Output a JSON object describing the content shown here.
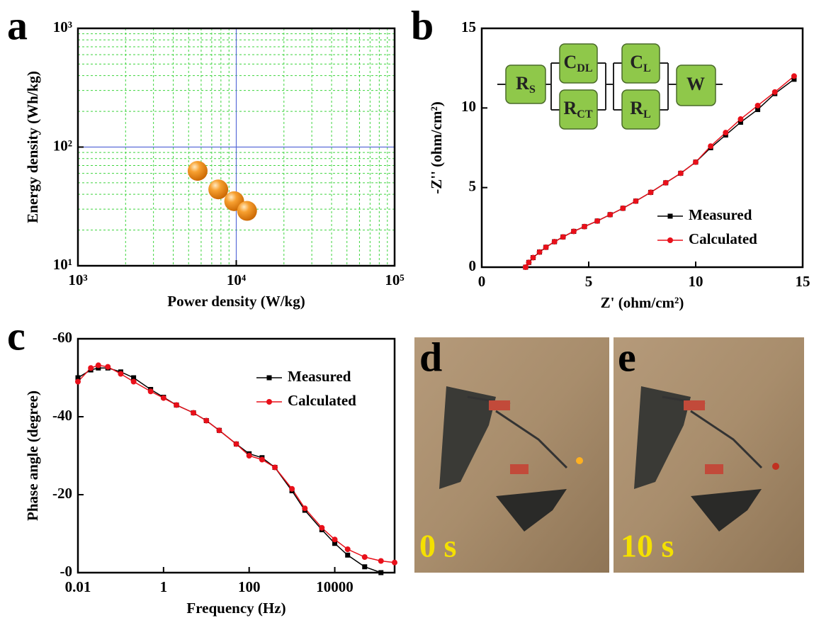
{
  "chart_data": [
    {
      "type": "scatter",
      "panel": "a",
      "xlabel": "Power density (W/kg)",
      "ylabel": "Energy density (Wh/kg)",
      "xlog": true,
      "ylog": true,
      "xlim": [
        1000,
        100000
      ],
      "ylim": [
        10,
        1000
      ],
      "xticks": [
        {
          "value": 1000,
          "label": "10³"
        },
        {
          "value": 10000,
          "label": "10⁴"
        },
        {
          "value": 100000,
          "label": "10⁵"
        }
      ],
      "yticks": [
        {
          "value": 10,
          "label": "10¹"
        },
        {
          "value": 100,
          "label": "10²"
        },
        {
          "value": 1000,
          "label": "10³"
        }
      ],
      "grid": true,
      "minor_grid": true,
      "x": [
        5700,
        7700,
        9700,
        11700
      ],
      "series": [
        {
          "color": "#f08a10",
          "values": [
            63,
            44,
            35,
            29
          ]
        }
      ]
    },
    {
      "type": "line",
      "panel": "b",
      "xlabel": "Z' (ohm/cm²)",
      "ylabel": "-Z'' (ohm/cm²)",
      "xlog": false,
      "ylog": false,
      "xlim": [
        0,
        15
      ],
      "ylim": [
        0,
        15
      ],
      "xticks": [
        0,
        5,
        10,
        15
      ],
      "yticks": [
        0,
        5,
        10,
        15
      ],
      "grid": false,
      "legend": "lower right",
      "x": [
        2.05,
        2.2,
        2.4,
        2.7,
        3.0,
        3.4,
        3.8,
        4.3,
        4.8,
        5.4,
        6.0,
        6.6,
        7.2,
        7.9,
        8.6,
        9.3,
        10.0,
        10.7,
        11.4,
        12.1,
        12.9,
        13.7,
        14.6
      ],
      "series": [
        {
          "name": "Measured",
          "color": "#000000",
          "marker": "square",
          "values": [
            0,
            0.3,
            0.6,
            0.95,
            1.25,
            1.6,
            1.9,
            2.25,
            2.55,
            2.9,
            3.3,
            3.7,
            4.15,
            4.7,
            5.3,
            5.9,
            6.6,
            7.5,
            8.3,
            9.1,
            9.9,
            10.9,
            11.8
          ]
        },
        {
          "name": "Calculated",
          "color": "#e8101a",
          "marker": "circle",
          "values": [
            0,
            0.3,
            0.6,
            0.95,
            1.25,
            1.6,
            1.9,
            2.25,
            2.55,
            2.9,
            3.3,
            3.7,
            4.15,
            4.7,
            5.3,
            5.9,
            6.6,
            7.6,
            8.45,
            9.3,
            10.15,
            11.0,
            12.0
          ]
        }
      ],
      "inset_circuit": [
        {
          "symbol": "R",
          "subscript": "S"
        },
        {
          "symbol": "C",
          "subscript": "DL"
        },
        {
          "symbol": "R",
          "subscript": "CT"
        },
        {
          "symbol": "C",
          "subscript": "L"
        },
        {
          "symbol": "R",
          "subscript": "L"
        },
        {
          "symbol": "W"
        }
      ]
    },
    {
      "type": "line",
      "panel": "c",
      "xlabel": "Frequency (Hz)",
      "ylabel": "Phase angle (degree)",
      "xlog": true,
      "ylog": false,
      "xlim": [
        0.01,
        250000
      ],
      "ylim": [
        0,
        -60
      ],
      "xticks": [
        0.01,
        1,
        100,
        10000
      ],
      "yticks": [
        {
          "value": -60,
          "label": "-60"
        },
        {
          "value": -40,
          "label": "-40"
        },
        {
          "value": -20,
          "label": "-20"
        },
        {
          "value": 0,
          "label": "-0"
        }
      ],
      "grid": false,
      "legend": "upper right",
      "x": [
        0.01,
        0.02,
        0.03,
        0.05,
        0.1,
        0.2,
        0.5,
        1,
        2,
        5,
        10,
        20,
        50,
        100,
        200,
        400,
        1000,
        2000,
        5000,
        10000,
        20000,
        50000,
        120000,
        250000
      ],
      "series": [
        {
          "name": "Measured",
          "color": "#000000",
          "marker": "square",
          "values": [
            -50,
            -52,
            -52.5,
            -52.5,
            -51.5,
            -50,
            -47,
            -45,
            -43,
            -41,
            -39,
            -36.5,
            -33,
            -30.5,
            -29.5,
            -27,
            -21,
            -16,
            -11,
            -7.5,
            -4.5,
            -1.5,
            0,
            null
          ]
        },
        {
          "name": "Calculated",
          "color": "#e8101a",
          "marker": "circle",
          "values": [
            -49,
            -52.5,
            -53.2,
            -52.8,
            -51,
            -49,
            -46.5,
            -44.8,
            -43,
            -41,
            -39,
            -36.5,
            -33,
            -30,
            -29,
            -27,
            -21.5,
            -16.5,
            -11.5,
            -8.5,
            -6,
            -4,
            -3,
            -2.6
          ]
        }
      ]
    }
  ],
  "photos": [
    {
      "panel": "d",
      "caption": "0 s"
    },
    {
      "panel": "e",
      "caption": "10 s"
    }
  ]
}
